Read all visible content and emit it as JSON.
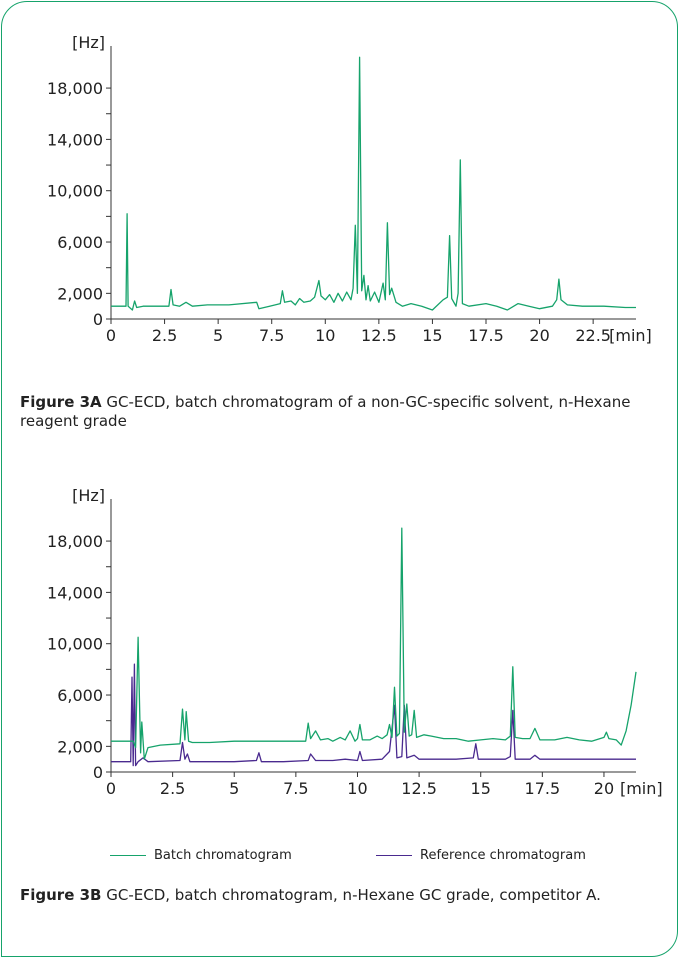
{
  "chart_data": [
    {
      "type": "line",
      "unit_y": "[Hz]",
      "unit_x": "[min]",
      "yticks": [
        "18,000",
        "14,000",
        "10,000",
        "6,000",
        "2,000",
        "0"
      ],
      "ytick_values": [
        18000,
        14000,
        10000,
        6000,
        2000,
        0
      ],
      "xticks": [
        "0",
        "2.5",
        "5",
        "7.5",
        "10",
        "12.5",
        "15",
        "17.5",
        "20",
        "22.5"
      ],
      "xtick_values": [
        0,
        2.5,
        5,
        7.5,
        10,
        12.5,
        15,
        17.5,
        20,
        22.5
      ],
      "xlim": [
        0,
        24.5
      ],
      "ylim": [
        0,
        20500
      ],
      "color": "#16a36b",
      "series": [
        {
          "points": [
            [
              0,
              1000
            ],
            [
              0.7,
              1000
            ],
            [
              0.75,
              8200
            ],
            [
              0.8,
              1000
            ],
            [
              1.0,
              700
            ],
            [
              1.1,
              1400
            ],
            [
              1.2,
              900
            ],
            [
              1.5,
              1000
            ],
            [
              2.7,
              1000
            ],
            [
              2.8,
              2300
            ],
            [
              2.9,
              1100
            ],
            [
              3.2,
              1000
            ],
            [
              3.5,
              1300
            ],
            [
              3.8,
              1000
            ],
            [
              4.5,
              1100
            ],
            [
              5.5,
              1100
            ],
            [
              6.8,
              1300
            ],
            [
              6.9,
              800
            ],
            [
              7.4,
              1000
            ],
            [
              7.9,
              1200
            ],
            [
              8.0,
              2200
            ],
            [
              8.1,
              1300
            ],
            [
              8.4,
              1400
            ],
            [
              8.6,
              1100
            ],
            [
              8.8,
              1600
            ],
            [
              9.0,
              1300
            ],
            [
              9.3,
              1400
            ],
            [
              9.5,
              1700
            ],
            [
              9.7,
              3000
            ],
            [
              9.8,
              1800
            ],
            [
              10.0,
              1500
            ],
            [
              10.2,
              1900
            ],
            [
              10.4,
              1300
            ],
            [
              10.6,
              2000
            ],
            [
              10.8,
              1400
            ],
            [
              11.0,
              2100
            ],
            [
              11.2,
              1500
            ],
            [
              11.3,
              2400
            ],
            [
              11.4,
              7300
            ],
            [
              11.5,
              2000
            ],
            [
              11.6,
              20400
            ],
            [
              11.7,
              2200
            ],
            [
              11.8,
              3400
            ],
            [
              11.9,
              1500
            ],
            [
              12.0,
              2600
            ],
            [
              12.1,
              1400
            ],
            [
              12.3,
              2100
            ],
            [
              12.5,
              1300
            ],
            [
              12.7,
              2800
            ],
            [
              12.8,
              1500
            ],
            [
              12.9,
              7500
            ],
            [
              13.0,
              1900
            ],
            [
              13.1,
              2400
            ],
            [
              13.3,
              1300
            ],
            [
              13.6,
              1000
            ],
            [
              14.0,
              1200
            ],
            [
              14.5,
              1000
            ],
            [
              15.0,
              700
            ],
            [
              15.5,
              1500
            ],
            [
              15.7,
              1700
            ],
            [
              15.8,
              6500
            ],
            [
              15.9,
              1600
            ],
            [
              16.1,
              1000
            ],
            [
              16.2,
              2000
            ],
            [
              16.3,
              12400
            ],
            [
              16.4,
              1200
            ],
            [
              16.7,
              1000
            ],
            [
              17.5,
              1200
            ],
            [
              18.0,
              1000
            ],
            [
              18.5,
              700
            ],
            [
              19.0,
              1200
            ],
            [
              19.5,
              1000
            ],
            [
              20.0,
              800
            ],
            [
              20.6,
              1000
            ],
            [
              20.8,
              1500
            ],
            [
              20.9,
              3100
            ],
            [
              21.0,
              1500
            ],
            [
              21.3,
              1100
            ],
            [
              22.0,
              1000
            ],
            [
              23.0,
              1000
            ],
            [
              24.0,
              900
            ],
            [
              24.5,
              900
            ]
          ]
        }
      ]
    },
    {
      "type": "line",
      "unit_y": "[Hz]",
      "unit_x": "[min]",
      "yticks": [
        "18,000",
        "14,000",
        "10,000",
        "6,000",
        "2,000",
        "0"
      ],
      "ytick_values": [
        18000,
        14000,
        10000,
        6000,
        2000,
        0
      ],
      "xticks": [
        "0",
        "2.5",
        "5",
        "7.5",
        "10",
        "12.5",
        "15",
        "17.5",
        "20"
      ],
      "xtick_values": [
        0,
        2.5,
        5,
        7.5,
        10,
        12.5,
        15,
        17.5,
        20
      ],
      "xlim": [
        0,
        21.3
      ],
      "ylim": [
        0,
        20500
      ],
      "legend": [
        "Batch chromatogram",
        "Reference chromatogram"
      ],
      "series": [
        {
          "name": "Batch chromatogram",
          "color": "#16a36b",
          "points": [
            [
              0,
              2400
            ],
            [
              0.9,
              2400
            ],
            [
              1.0,
              1900
            ],
            [
              1.1,
              10500
            ],
            [
              1.2,
              1500
            ],
            [
              1.25,
              3900
            ],
            [
              1.35,
              1000
            ],
            [
              1.5,
              1900
            ],
            [
              2.0,
              2100
            ],
            [
              2.8,
              2200
            ],
            [
              2.9,
              4900
            ],
            [
              3.0,
              2500
            ],
            [
              3.05,
              4700
            ],
            [
              3.15,
              2400
            ],
            [
              3.3,
              2300
            ],
            [
              4.0,
              2300
            ],
            [
              5.0,
              2400
            ],
            [
              6.0,
              2400
            ],
            [
              7.0,
              2400
            ],
            [
              7.9,
              2400
            ],
            [
              8.0,
              3800
            ],
            [
              8.1,
              2600
            ],
            [
              8.3,
              3200
            ],
            [
              8.5,
              2500
            ],
            [
              8.8,
              2600
            ],
            [
              9.0,
              2400
            ],
            [
              9.3,
              2700
            ],
            [
              9.5,
              2500
            ],
            [
              9.7,
              3200
            ],
            [
              9.9,
              2400
            ],
            [
              10.0,
              2600
            ],
            [
              10.1,
              3700
            ],
            [
              10.2,
              2500
            ],
            [
              10.5,
              2500
            ],
            [
              10.8,
              2800
            ],
            [
              11.0,
              2600
            ],
            [
              11.2,
              2900
            ],
            [
              11.3,
              3700
            ],
            [
              11.4,
              2700
            ],
            [
              11.5,
              6600
            ],
            [
              11.6,
              2800
            ],
            [
              11.7,
              3000
            ],
            [
              11.8,
              19000
            ],
            [
              11.9,
              3100
            ],
            [
              12.0,
              5300
            ],
            [
              12.1,
              2800
            ],
            [
              12.2,
              2900
            ],
            [
              12.3,
              4800
            ],
            [
              12.4,
              2700
            ],
            [
              12.7,
              2900
            ],
            [
              13.0,
              2800
            ],
            [
              13.5,
              2600
            ],
            [
              14.0,
              2600
            ],
            [
              14.5,
              2400
            ],
            [
              15.0,
              2500
            ],
            [
              15.5,
              2600
            ],
            [
              16.0,
              2500
            ],
            [
              16.2,
              2800
            ],
            [
              16.3,
              8200
            ],
            [
              16.4,
              2700
            ],
            [
              16.7,
              2600
            ],
            [
              17.0,
              2600
            ],
            [
              17.2,
              3400
            ],
            [
              17.4,
              2500
            ],
            [
              18.0,
              2500
            ],
            [
              18.5,
              2700
            ],
            [
              19.0,
              2500
            ],
            [
              19.5,
              2400
            ],
            [
              20.0,
              2700
            ],
            [
              20.1,
              3100
            ],
            [
              20.2,
              2600
            ],
            [
              20.5,
              2500
            ],
            [
              20.7,
              2100
            ],
            [
              20.9,
              3200
            ],
            [
              21.1,
              5200
            ],
            [
              21.3,
              7800
            ]
          ]
        },
        {
          "name": "Reference chromatogram",
          "color": "#4a2a8f",
          "points": [
            [
              0,
              800
            ],
            [
              0.8,
              800
            ],
            [
              0.85,
              7400
            ],
            [
              0.9,
              500
            ],
            [
              0.95,
              8400
            ],
            [
              1.0,
              500
            ],
            [
              1.1,
              800
            ],
            [
              1.3,
              1100
            ],
            [
              1.5,
              800
            ],
            [
              2.8,
              900
            ],
            [
              2.9,
              2300
            ],
            [
              3.0,
              1000
            ],
            [
              3.1,
              1400
            ],
            [
              3.2,
              800
            ],
            [
              4.0,
              800
            ],
            [
              5.0,
              800
            ],
            [
              5.9,
              900
            ],
            [
              6.0,
              1500
            ],
            [
              6.1,
              800
            ],
            [
              7.0,
              800
            ],
            [
              8.0,
              900
            ],
            [
              8.1,
              1400
            ],
            [
              8.3,
              900
            ],
            [
              9.0,
              900
            ],
            [
              9.5,
              1000
            ],
            [
              10.0,
              900
            ],
            [
              10.1,
              1600
            ],
            [
              10.2,
              900
            ],
            [
              11.0,
              1000
            ],
            [
              11.3,
              1600
            ],
            [
              11.5,
              5200
            ],
            [
              11.6,
              1100
            ],
            [
              11.8,
              1200
            ],
            [
              11.9,
              5200
            ],
            [
              12.0,
              1100
            ],
            [
              12.3,
              1300
            ],
            [
              12.5,
              1000
            ],
            [
              13.0,
              1000
            ],
            [
              14.0,
              1000
            ],
            [
              14.7,
              1100
            ],
            [
              14.8,
              2200
            ],
            [
              14.9,
              1000
            ],
            [
              15.5,
              1000
            ],
            [
              16.0,
              1000
            ],
            [
              16.2,
              1200
            ],
            [
              16.3,
              4800
            ],
            [
              16.4,
              1000
            ],
            [
              17.0,
              1000
            ],
            [
              17.2,
              1300
            ],
            [
              17.4,
              1000
            ],
            [
              18.0,
              1000
            ],
            [
              19.0,
              1000
            ],
            [
              20.0,
              1000
            ],
            [
              21.3,
              1000
            ]
          ]
        }
      ]
    }
  ],
  "captions": {
    "fig3a_label": "Figure 3A",
    "fig3a_text": " GC-ECD, batch chromatogram of a non-GC-specific solvent, n-Hexane reagent grade",
    "fig3b_label": "Figure 3B",
    "fig3b_text": " GC-ECD, batch chromatogram, n-Hexane GC grade, competitor A."
  },
  "legend": {
    "batch_label": "Batch chromatogram",
    "reference_label": "Reference chromatogram",
    "batch_color": "#16a36b",
    "reference_color": "#4a2a8f"
  },
  "frame_color": "#16a36b"
}
